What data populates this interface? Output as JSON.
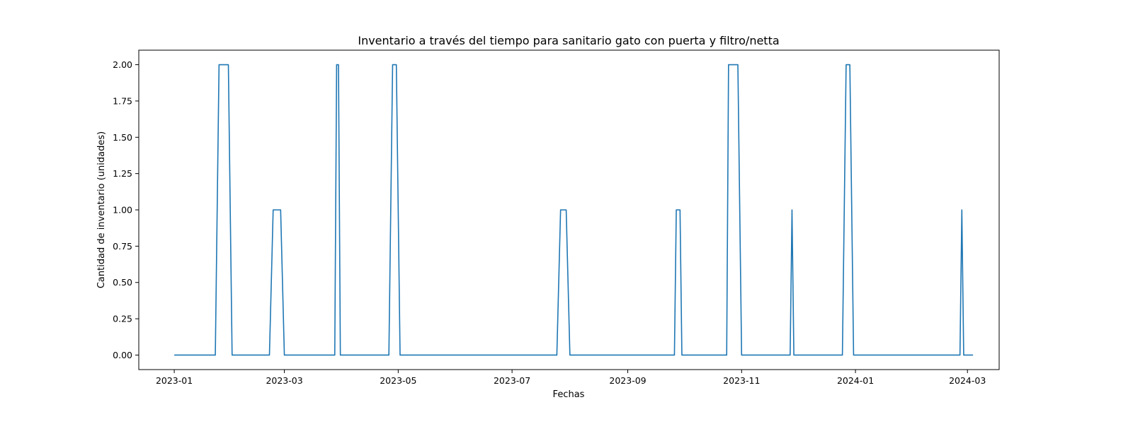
{
  "chart_data": {
    "type": "line",
    "title": "Inventario a través del tiempo para sanitario gato con puerta y filtro/netta",
    "xlabel": "Fechas",
    "ylabel": "Cantidad de inventario (unidades)",
    "xlim": [
      "2022-12-13",
      "2024-03-18"
    ],
    "ylim": [
      -0.1,
      2.1
    ],
    "x_ticks": [
      "2023-01",
      "2023-03",
      "2023-05",
      "2023-07",
      "2023-09",
      "2023-11",
      "2024-01",
      "2024-03"
    ],
    "y_ticks": [
      "0.00",
      "0.25",
      "0.50",
      "0.75",
      "1.00",
      "1.25",
      "1.50",
      "1.75",
      "2.00"
    ],
    "grid": false,
    "series": [
      {
        "color": "#1f77b4",
        "x": [
          "2023-01-01",
          "2023-01-23",
          "2023-01-25",
          "2023-01-30",
          "2023-02-01",
          "2023-02-21",
          "2023-02-23",
          "2023-02-27",
          "2023-03-01",
          "2023-03-28",
          "2023-03-29",
          "2023-03-30",
          "2023-03-31",
          "2023-04-26",
          "2023-04-28",
          "2023-04-30",
          "2023-05-02",
          "2023-07-25",
          "2023-07-27",
          "2023-07-30",
          "2023-08-01",
          "2023-09-26",
          "2023-09-27",
          "2023-09-29",
          "2023-09-30",
          "2023-10-24",
          "2023-10-25",
          "2023-10-30",
          "2023-11-01",
          "2023-11-27",
          "2023-11-28",
          "2023-11-29",
          "2023-12-25",
          "2023-12-27",
          "2023-12-29",
          "2023-12-31",
          "2024-02-26",
          "2024-02-27",
          "2024-02-28",
          "2024-03-04"
        ],
        "y": [
          0,
          0,
          2,
          2,
          0,
          0,
          1,
          1,
          0,
          0,
          2,
          2,
          0,
          0,
          2,
          2,
          0,
          0,
          1,
          1,
          0,
          0,
          1,
          1,
          0,
          0,
          2,
          2,
          0,
          0,
          1,
          0,
          0,
          2,
          2,
          0,
          0,
          1,
          0,
          0
        ]
      }
    ]
  }
}
